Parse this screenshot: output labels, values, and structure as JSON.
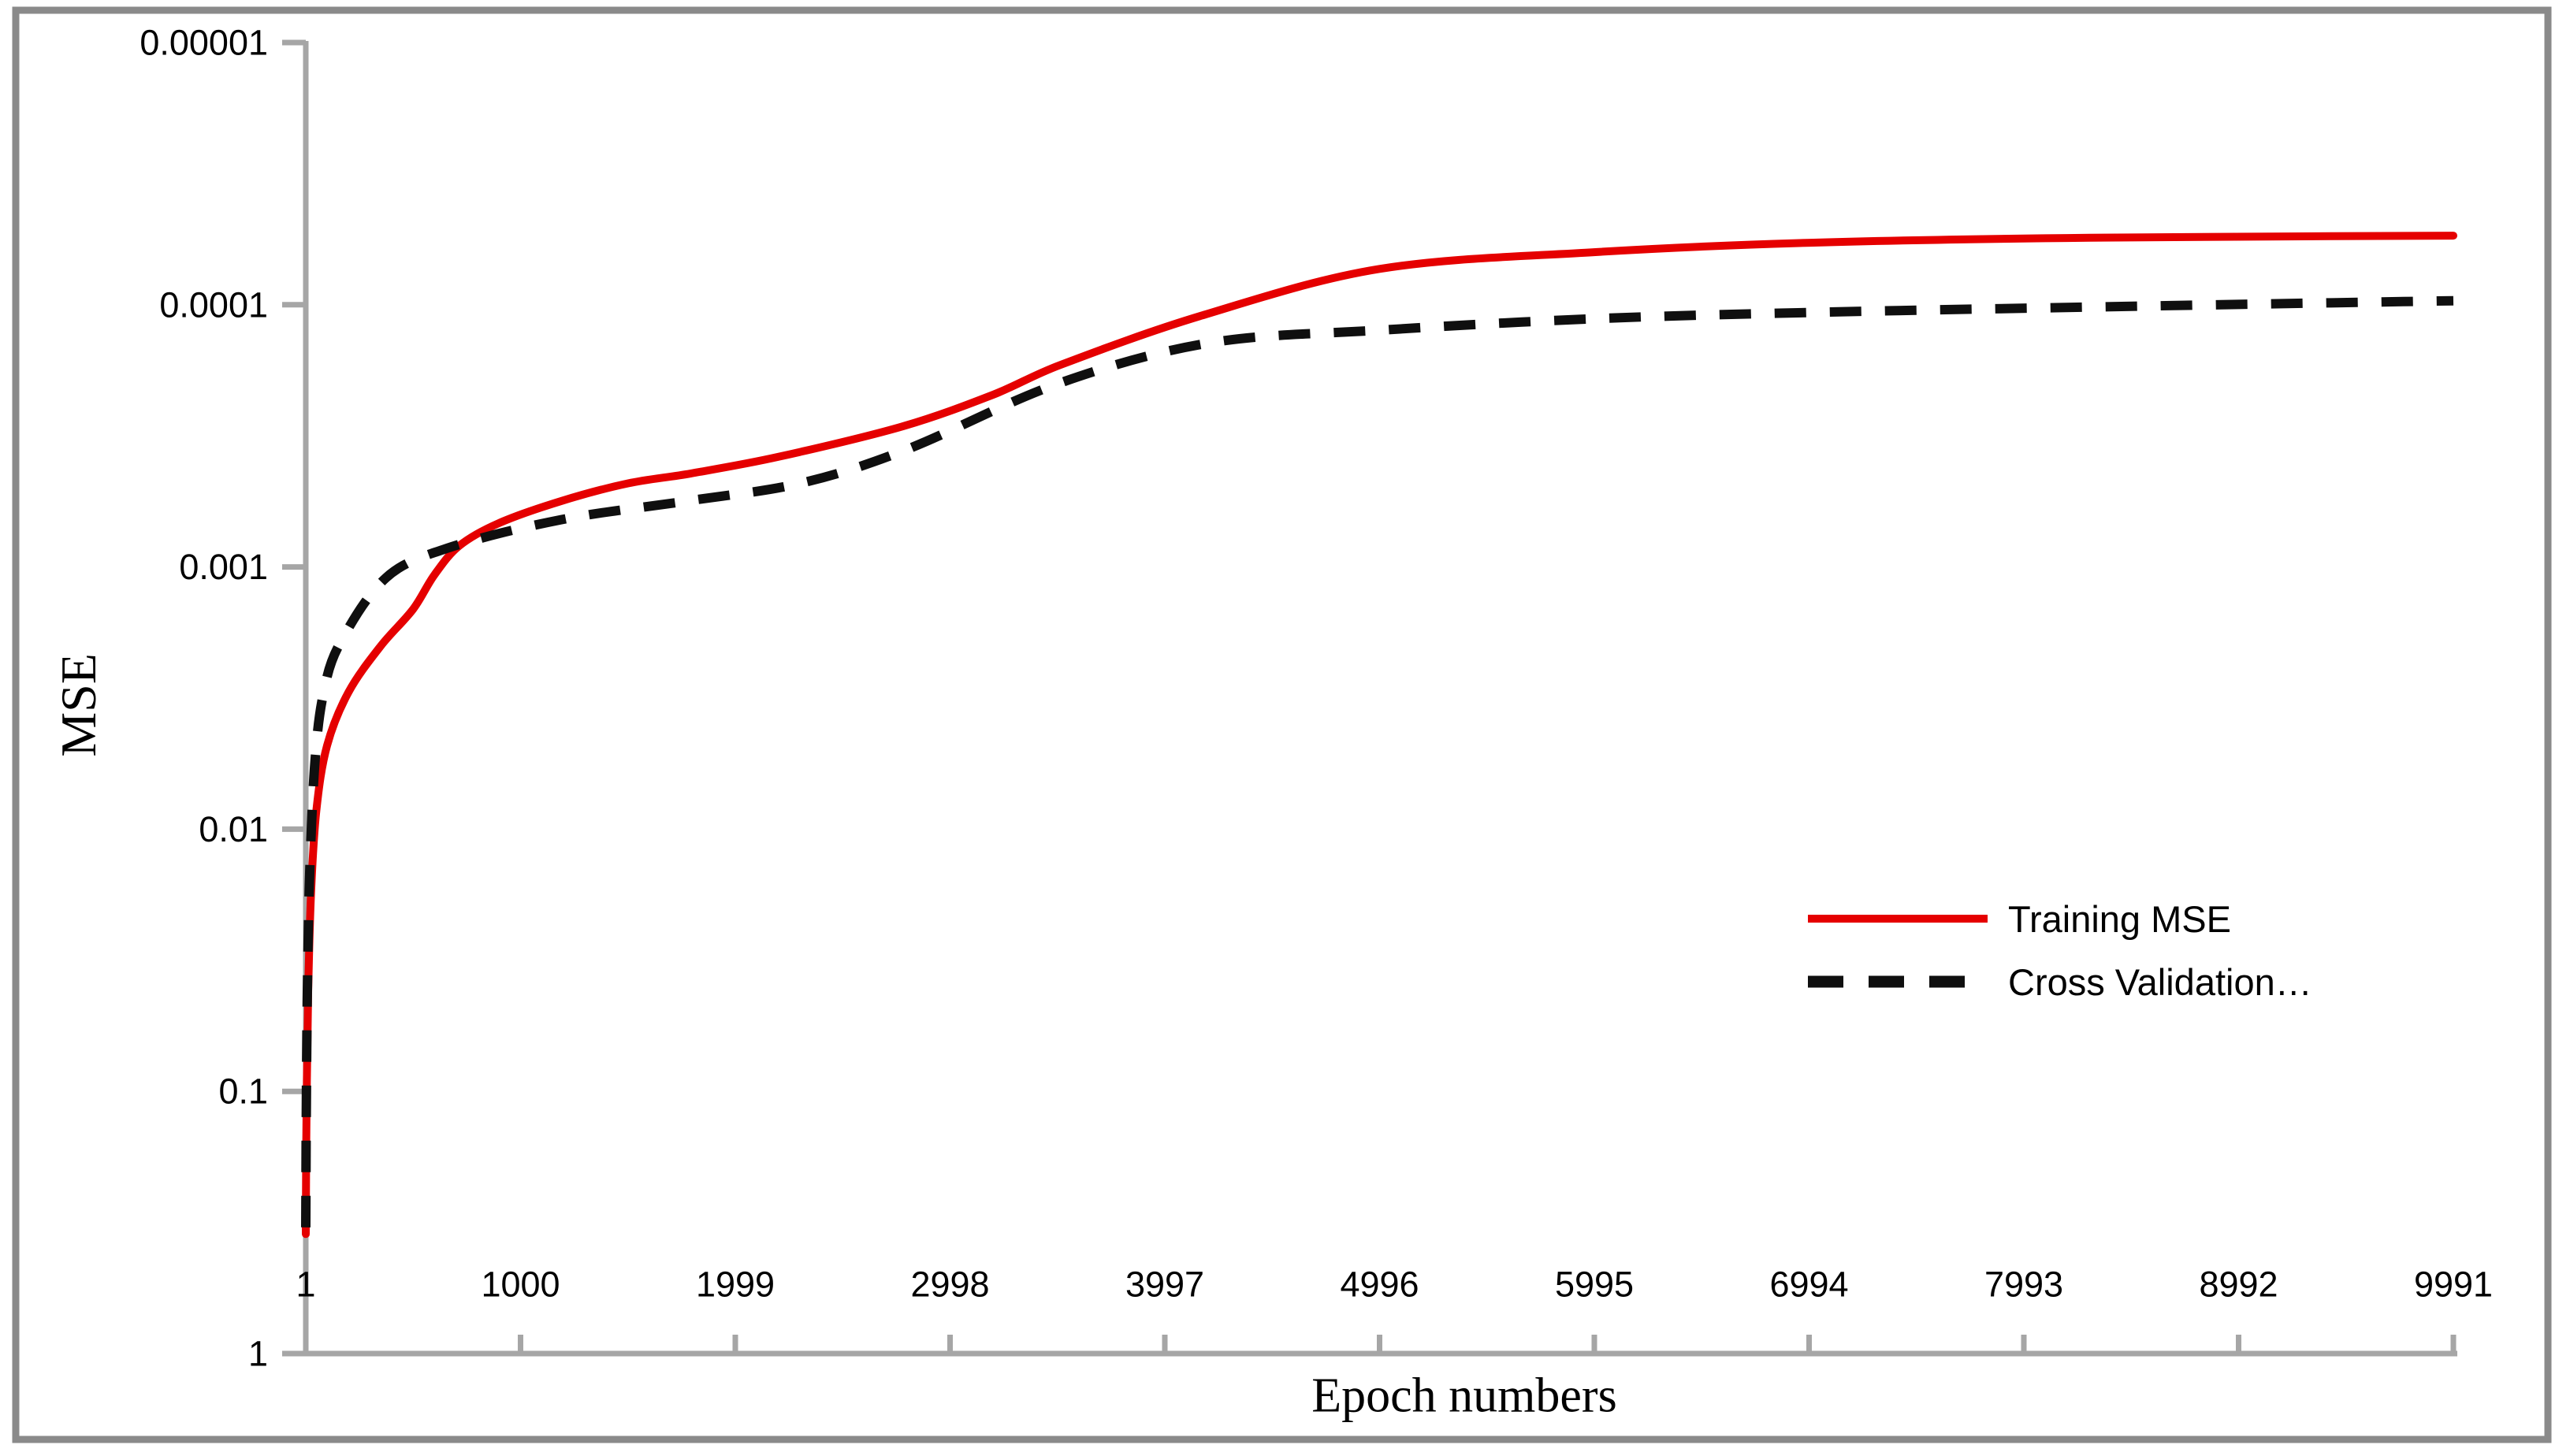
{
  "figure": {
    "background": "#ffffff",
    "border_color": "#8a8a8a",
    "axis_color": "#a6a6a6",
    "text_color": "#000000"
  },
  "chart_data": {
    "type": "line",
    "title": "",
    "xlabel": "Epoch numbers",
    "ylabel": "MSE",
    "grid": "off",
    "legend_position": "middle-right",
    "x_axis": {
      "title": "Epoch numbers",
      "scale": "linear",
      "range": [
        1,
        9991
      ],
      "tick_values": [
        1,
        1000,
        1999,
        2998,
        3997,
        4996,
        5995,
        6994,
        7993,
        8992,
        9991
      ],
      "tick_labels": [
        "1",
        "1000",
        "1999",
        "2998",
        "3997",
        "4996",
        "5995",
        "6994",
        "7993",
        "8992",
        "9991"
      ]
    },
    "y_axis": {
      "title": "MSE",
      "scale": "log-reversed",
      "top_value": 1e-05,
      "bottom_value": 1,
      "tick_values": [
        1e-05,
        0.0001,
        0.001,
        0.01,
        0.1,
        1
      ],
      "tick_labels": [
        "0.00001",
        "0.0001",
        "0.001",
        "0.01",
        "0.1",
        "1"
      ]
    },
    "series": [
      {
        "name": "Training MSE",
        "color": "#e50000",
        "line_style": "solid",
        "line_width": 10,
        "points": [
          [
            1,
            0.35
          ],
          [
            3,
            0.17
          ],
          [
            6,
            0.09
          ],
          [
            12,
            0.042
          ],
          [
            25,
            0.018
          ],
          [
            50,
            0.0085
          ],
          [
            100,
            0.0048
          ],
          [
            200,
            0.003
          ],
          [
            350,
            0.002
          ],
          [
            500,
            0.00145
          ],
          [
            600,
            0.00107
          ],
          [
            715,
            0.00083
          ],
          [
            900,
            0.00068
          ],
          [
            1191,
            0.00056
          ],
          [
            1500,
            0.00048
          ],
          [
            1793,
            0.00044
          ],
          [
            2200,
            0.00038
          ],
          [
            2783,
            0.00029
          ],
          [
            3200,
            0.00022
          ],
          [
            3508,
            0.00017
          ],
          [
            4168,
            0.00011
          ],
          [
            4996,
            7.3e-05
          ],
          [
            6000,
            6.3e-05
          ],
          [
            7000,
            5.8e-05
          ],
          [
            8300,
            5.55e-05
          ],
          [
            9991,
            5.45e-05
          ]
        ]
      },
      {
        "name": "Cross Validation…",
        "color": "#0f0f0f",
        "line_style": "dashed",
        "line_width": 12,
        "dash_pattern": [
          40,
          30
        ],
        "points": [
          [
            1,
            0.33
          ],
          [
            3,
            0.14
          ],
          [
            6,
            0.06
          ],
          [
            10,
            0.033
          ],
          [
            20,
            0.014
          ],
          [
            44,
            0.0055
          ],
          [
            81,
            0.0031
          ],
          [
            154,
            0.002
          ],
          [
            374,
            0.0011
          ],
          [
            656,
            0.00085
          ],
          [
            1191,
            0.00066
          ],
          [
            1778,
            0.00056
          ],
          [
            2300,
            0.00048
          ],
          [
            2783,
            0.00036
          ],
          [
            3500,
            0.0002
          ],
          [
            4200,
            0.00014
          ],
          [
            4996,
            0.000125
          ],
          [
            6000,
            0.000113
          ],
          [
            7000,
            0.000107
          ],
          [
            8300,
            0.000102
          ],
          [
            9991,
            9.65e-05
          ]
        ]
      }
    ]
  }
}
